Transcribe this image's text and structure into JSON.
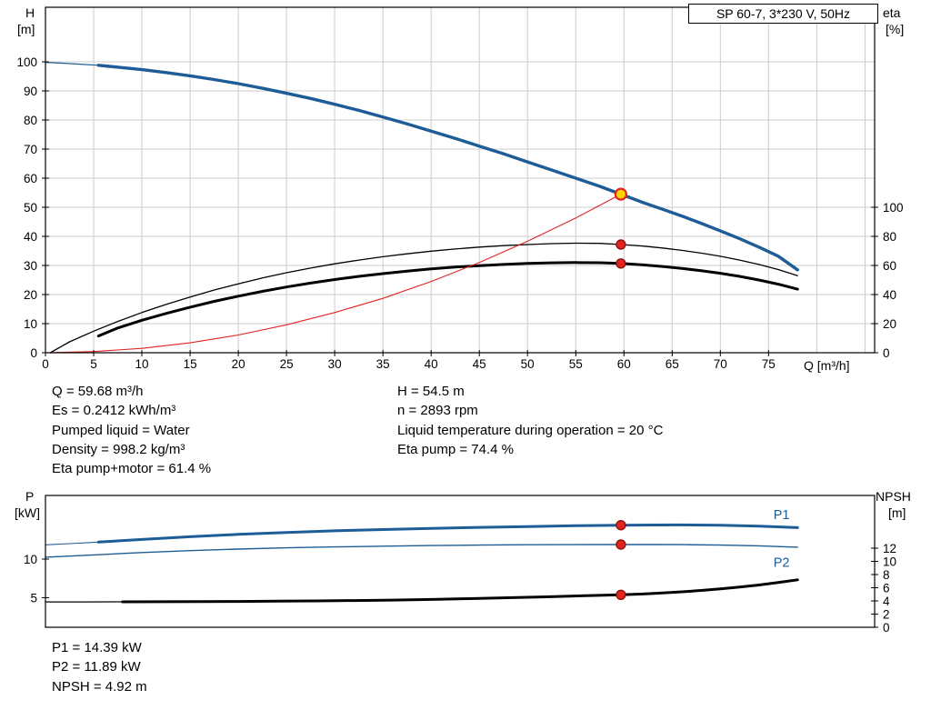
{
  "stats_top": {
    "left": [
      "Q = 59.68 m³/h",
      "Es = 0.2412 kWh/m³",
      "Pumped liquid = Water",
      "Density = 998.2 kg/m³",
      "Eta pump+motor = 61.4 %"
    ],
    "right": [
      "H = 54.5 m",
      "n = 2893 rpm",
      "Liquid temperature during operation = 20 °C",
      "Eta pump = 74.4 %"
    ]
  },
  "stats_bottom": [
    "P1 = 14.39 kW",
    "P2 = 11.89 kW",
    "NPSH = 4.92 m"
  ],
  "colors": {
    "curve_blue": "#1d5c96",
    "curve_red": "#e02420",
    "marker_yellow": "#ffd400",
    "grid_gray": "#cccccc"
  },
  "chart_data": [
    {
      "type": "line",
      "name": "qh-efficiency-chart",
      "title": "SP 60-7, 3*230 V, 50Hz",
      "duty_point": {
        "q": 59.68,
        "h": 54.5,
        "eta_pump": 74.4,
        "eta_pump_motor": 61.4
      },
      "x": {
        "label": "Q [m³/h]",
        "min": 0,
        "max": 86,
        "grid_step": 5,
        "ticks": [
          0,
          5,
          10,
          15,
          20,
          25,
          30,
          35,
          40,
          45,
          50,
          55,
          60,
          65,
          70,
          75
        ]
      },
      "y_left": {
        "label": "H",
        "unit": "[m]",
        "min": 0,
        "max": 118.75,
        "ticks": [
          0,
          10,
          20,
          30,
          40,
          50,
          60,
          70,
          80,
          90,
          100
        ]
      },
      "y_right": {
        "label": "eta",
        "unit": "[%]",
        "min": 0,
        "max": 237.5,
        "ticks": [
          0,
          20,
          40,
          60,
          80,
          100
        ]
      },
      "grid": true,
      "series": [
        {
          "name": "head-curve-lead",
          "axis": "left",
          "color": "#1d5c96",
          "width": 1.2,
          "points": [
            [
              0,
              99.8
            ],
            [
              2,
              99.5
            ],
            [
              4,
              99.1
            ],
            [
              5.5,
              98.8
            ]
          ]
        },
        {
          "name": "head-curve",
          "axis": "left",
          "color": "#1d5c96",
          "width": 3.4,
          "points": [
            [
              5.5,
              98.8
            ],
            [
              8,
              98.0
            ],
            [
              10,
              97.3
            ],
            [
              12.5,
              96.3
            ],
            [
              15,
              95.2
            ],
            [
              17.5,
              93.9
            ],
            [
              20,
              92.5
            ],
            [
              22.5,
              90.9
            ],
            [
              25,
              89.2
            ],
            [
              27.5,
              87.4
            ],
            [
              30,
              85.4
            ],
            [
              32.5,
              83.3
            ],
            [
              35,
              81.0
            ],
            [
              37.5,
              78.7
            ],
            [
              40,
              76.2
            ],
            [
              42.5,
              73.7
            ],
            [
              45,
              71.0
            ],
            [
              47.5,
              68.4
            ],
            [
              50,
              65.6
            ],
            [
              52.5,
              62.8
            ],
            [
              55,
              60.0
            ],
            [
              57.5,
              57.2
            ],
            [
              59.68,
              54.5
            ],
            [
              62,
              51.6
            ],
            [
              64,
              49.3
            ],
            [
              66,
              47.0
            ],
            [
              68,
              44.5
            ],
            [
              70,
              41.9
            ],
            [
              72,
              39.2
            ],
            [
              74,
              36.3
            ],
            [
              76,
              33.2
            ],
            [
              78,
              28.5
            ]
          ]
        },
        {
          "name": "eta-pump-curve",
          "axis": "right",
          "color": "#000000",
          "width": 1.3,
          "points": [
            [
              0.5,
              0
            ],
            [
              2.5,
              7.5
            ],
            [
              5,
              14.8
            ],
            [
              7.5,
              21.5
            ],
            [
              10,
              27.6
            ],
            [
              12.5,
              33.2
            ],
            [
              15,
              38.3
            ],
            [
              17.5,
              43.1
            ],
            [
              20,
              47.4
            ],
            [
              22.5,
              51.4
            ],
            [
              25,
              55.0
            ],
            [
              27.5,
              58.2
            ],
            [
              30,
              61.1
            ],
            [
              32.5,
              63.7
            ],
            [
              35,
              66.0
            ],
            [
              37.5,
              68.0
            ],
            [
              40,
              69.8
            ],
            [
              42.5,
              71.3
            ],
            [
              45,
              72.6
            ],
            [
              47.5,
              73.6
            ],
            [
              50,
              74.4
            ],
            [
              52.5,
              75.0
            ],
            [
              55,
              75.3
            ],
            [
              57.5,
              75.2
            ],
            [
              59.68,
              74.4
            ],
            [
              62,
              73.3
            ],
            [
              64,
              72.0
            ],
            [
              66,
              70.4
            ],
            [
              68,
              68.5
            ],
            [
              70,
              66.3
            ],
            [
              72,
              63.7
            ],
            [
              74,
              60.7
            ],
            [
              76,
              57.2
            ],
            [
              78,
              53.0
            ]
          ]
        },
        {
          "name": "eta-pump-motor-curve",
          "axis": "right",
          "color": "#000000",
          "width": 3,
          "points": [
            [
              5.5,
              11.5
            ],
            [
              7.5,
              17.0
            ],
            [
              10,
              22.3
            ],
            [
              12.5,
              27.0
            ],
            [
              15,
              31.3
            ],
            [
              17.5,
              35.3
            ],
            [
              20,
              38.9
            ],
            [
              22.5,
              42.2
            ],
            [
              25,
              45.2
            ],
            [
              27.5,
              47.9
            ],
            [
              30,
              50.3
            ],
            [
              32.5,
              52.5
            ],
            [
              35,
              54.4
            ],
            [
              37.5,
              56.1
            ],
            [
              40,
              57.6
            ],
            [
              42.5,
              58.9
            ],
            [
              45,
              59.9
            ],
            [
              47.5,
              60.7
            ],
            [
              50,
              61.4
            ],
            [
              52.5,
              61.8
            ],
            [
              55,
              62.0
            ],
            [
              57.5,
              61.9
            ],
            [
              59.68,
              61.4
            ],
            [
              62,
              60.4
            ],
            [
              64,
              59.3
            ],
            [
              66,
              58.0
            ],
            [
              68,
              56.4
            ],
            [
              70,
              54.6
            ],
            [
              72,
              52.5
            ],
            [
              74,
              50.0
            ],
            [
              76,
              47.1
            ],
            [
              78,
              43.7
            ]
          ]
        },
        {
          "name": "system-curve",
          "axis": "left",
          "color": "#e02420",
          "width": 1.1,
          "points": [
            [
              0,
              0
            ],
            [
              5,
              0.4
            ],
            [
              10,
              1.5
            ],
            [
              15,
              3.4
            ],
            [
              20,
              6.1
            ],
            [
              25,
              9.6
            ],
            [
              30,
              13.8
            ],
            [
              35,
              18.7
            ],
            [
              40,
              24.5
            ],
            [
              45,
              31.0
            ],
            [
              50,
              38.3
            ],
            [
              55,
              46.3
            ],
            [
              59.68,
              54.5
            ]
          ]
        }
      ],
      "markers": [
        {
          "name": "eta-pump-operating-point",
          "axis": "right",
          "q": 59.68,
          "v": 74.4,
          "fill": "#e02420",
          "stroke": "#8f130d",
          "r": 5
        },
        {
          "name": "eta-pump-motor-operating-point",
          "axis": "right",
          "q": 59.68,
          "v": 61.4,
          "fill": "#e02420",
          "stroke": "#8f130d",
          "r": 5
        },
        {
          "name": "duty-point",
          "axis": "left",
          "q": 59.68,
          "v": 54.5,
          "fill": "#ffd400",
          "stroke": "#e02420",
          "r": 6,
          "stroke_width": 2.2
        }
      ]
    },
    {
      "type": "line",
      "name": "power-npsh-chart",
      "x": {
        "label": "",
        "min": 0,
        "max": 86,
        "grid_step": 0,
        "ticks": []
      },
      "y_left": {
        "label": "P",
        "unit": "[kW]",
        "min": 1.18,
        "max": 18.24,
        "ticks": [
          5,
          10
        ]
      },
      "y_right": {
        "label": "NPSH",
        "unit": "[m]",
        "min": 0,
        "max": 20,
        "ticks": [
          0,
          2,
          4,
          6,
          8,
          10,
          12
        ]
      },
      "grid": false,
      "series": [
        {
          "name": "p1-curve-lead",
          "axis": "left",
          "color": "#1d5c96",
          "width": 1.1,
          "points": [
            [
              0,
              11.85
            ],
            [
              2.5,
              12.0
            ],
            [
              5.5,
              12.2
            ]
          ]
        },
        {
          "name": "p1-curve",
          "axis": "left",
          "color": "#1d5c96",
          "width": 3,
          "points": [
            [
              5.5,
              12.2
            ],
            [
              10,
              12.55
            ],
            [
              15,
              12.9
            ],
            [
              20,
              13.2
            ],
            [
              25,
              13.45
            ],
            [
              30,
              13.66
            ],
            [
              35,
              13.83
            ],
            [
              40,
              13.98
            ],
            [
              45,
              14.11
            ],
            [
              50,
              14.22
            ],
            [
              55,
              14.32
            ],
            [
              59.68,
              14.39
            ],
            [
              63,
              14.42
            ],
            [
              66,
              14.43
            ],
            [
              70,
              14.39
            ],
            [
              74,
              14.27
            ],
            [
              78,
              14.08
            ]
          ]
        },
        {
          "name": "p2-curve",
          "axis": "left",
          "color": "#1d5c96",
          "width": 1.4,
          "points": [
            [
              0,
              10.25
            ],
            [
              5,
              10.55
            ],
            [
              10,
              10.85
            ],
            [
              15,
              11.1
            ],
            [
              20,
              11.3
            ],
            [
              25,
              11.46
            ],
            [
              30,
              11.58
            ],
            [
              35,
              11.68
            ],
            [
              40,
              11.76
            ],
            [
              45,
              11.82
            ],
            [
              50,
              11.86
            ],
            [
              55,
              11.88
            ],
            [
              59.68,
              11.89
            ],
            [
              63,
              11.89
            ],
            [
              66,
              11.87
            ],
            [
              70,
              11.82
            ],
            [
              74,
              11.72
            ],
            [
              78,
              11.55
            ]
          ]
        },
        {
          "name": "npsh-curve-lead",
          "axis": "right",
          "color": "#000000",
          "width": 1.2,
          "points": [
            [
              0,
              3.85
            ],
            [
              4,
              3.85
            ],
            [
              8,
              3.86
            ]
          ]
        },
        {
          "name": "npsh-curve",
          "axis": "right",
          "color": "#000000",
          "width": 3,
          "points": [
            [
              8,
              3.86
            ],
            [
              12,
              3.87
            ],
            [
              16,
              3.89
            ],
            [
              20,
              3.92
            ],
            [
              24,
              3.96
            ],
            [
              28,
              4.0
            ],
            [
              32,
              4.06
            ],
            [
              36,
              4.13
            ],
            [
              40,
              4.22
            ],
            [
              44,
              4.34
            ],
            [
              48,
              4.48
            ],
            [
              52,
              4.62
            ],
            [
              56,
              4.78
            ],
            [
              59.68,
              4.92
            ],
            [
              62,
              5.05
            ],
            [
              64,
              5.2
            ],
            [
              66,
              5.38
            ],
            [
              68,
              5.58
            ],
            [
              70,
              5.82
            ],
            [
              72,
              6.1
            ],
            [
              74,
              6.42
            ],
            [
              76,
              6.78
            ],
            [
              78,
              7.2
            ]
          ]
        }
      ],
      "series_labels": [
        {
          "label": "P1",
          "x": 75.5,
          "y": 15.2,
          "axis": "left",
          "color": "#1d5c96"
        },
        {
          "label": "P2",
          "x": 75.5,
          "y": 9.0,
          "axis": "left",
          "color": "#1d5c96"
        }
      ],
      "markers": [
        {
          "name": "p1-operating-point",
          "axis": "left",
          "q": 59.68,
          "v": 14.39,
          "fill": "#e02420",
          "stroke": "#8f130d",
          "r": 5
        },
        {
          "name": "p2-operating-point",
          "axis": "left",
          "q": 59.68,
          "v": 11.89,
          "fill": "#e02420",
          "stroke": "#8f130d",
          "r": 5
        },
        {
          "name": "npsh-operating-point",
          "axis": "right",
          "q": 59.68,
          "v": 4.92,
          "fill": "#e02420",
          "stroke": "#8f130d",
          "r": 5
        }
      ]
    }
  ]
}
